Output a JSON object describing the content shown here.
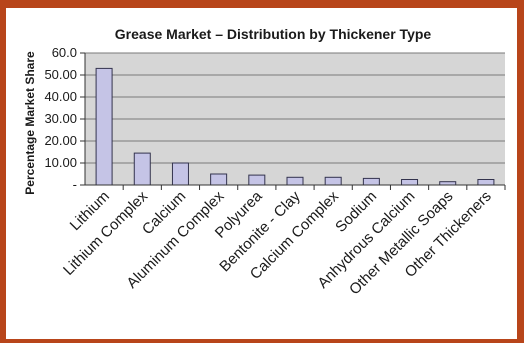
{
  "chart_data": {
    "type": "bar",
    "title": "Grease Market – Distribution by Thickener Type",
    "xlabel": "",
    "ylabel": "Percentage Market Share",
    "categories": [
      "Lithium",
      "Lithium Complex",
      "Calcium",
      "Aluminum Complex",
      "Polyurea",
      "Bentonite - Clay",
      "Calcium Complex",
      "Sodium",
      "Anhydrous Calcium",
      "Other Metallic Soaps",
      "Other Thickeners"
    ],
    "values": [
      53.0,
      14.5,
      10.0,
      5.0,
      4.5,
      3.5,
      3.5,
      3.0,
      2.5,
      1.5,
      2.5
    ],
    "ylim": [
      0,
      60
    ],
    "yticks": [
      {
        "value": 0,
        "label": "-"
      },
      {
        "value": 10,
        "label": "10.00"
      },
      {
        "value": 20,
        "label": "20.00"
      },
      {
        "value": 30,
        "label": "30.00"
      },
      {
        "value": 40,
        "label": "40.00"
      },
      {
        "value": 50,
        "label": "50.00"
      },
      {
        "value": 60,
        "label": "60.0"
      }
    ],
    "grid": true,
    "legend": "none",
    "colors": {
      "bar_fill": "#c5c4e6",
      "bar_stroke": "#33334d",
      "plot_background": "#d6d6d6",
      "gridline": "#7a7a7a",
      "frame": "#b8451a"
    }
  }
}
